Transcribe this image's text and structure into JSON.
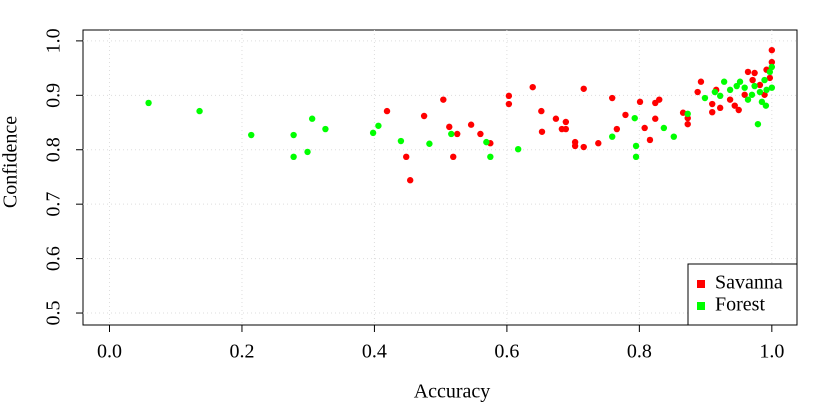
{
  "chart_data": {
    "type": "scatter",
    "x_label": "Accuracy",
    "y_label": "Confidence",
    "xlim": [
      -0.04,
      1.038
    ],
    "ylim": [
      0.478,
      1.02
    ],
    "xticks": [
      {
        "value": 0,
        "label": "0.0"
      },
      0.2,
      0.4,
      0.6,
      0.8,
      {
        "value": 1,
        "label": "1.0"
      }
    ],
    "yticks": [
      0.5,
      0.6,
      0.7,
      0.8,
      0.9,
      {
        "value": 1,
        "label": "1.0"
      }
    ],
    "grid": true,
    "legend": "bottom-right",
    "series": [
      {
        "name": "Savanna",
        "color": "#ff0000",
        "x": [
          0.419,
          0.454,
          0.448,
          0.475,
          0.504,
          0.513,
          0.519,
          0.525,
          0.546,
          0.56,
          0.575,
          0.603,
          0.603,
          0.639,
          0.652,
          0.653,
          0.674,
          0.683,
          0.689,
          0.689,
          0.703,
          0.703,
          0.716,
          0.716,
          0.738,
          0.759,
          0.766,
          0.779,
          0.801,
          0.808,
          0.816,
          0.824,
          0.83,
          0.824,
          0.866,
          0.873,
          0.888,
          0.893,
          0.91,
          0.916,
          0.922,
          0.937,
          0.944,
          0.964,
          0.971,
          0.982,
          0.992,
          1.0,
          1.0,
          0.989,
          0.959,
          0.91,
          0.95,
          0.873,
          0.974,
          0.997
        ],
        "values": [
          0.871,
          0.744,
          0.787,
          0.862,
          0.892,
          0.842,
          0.787,
          0.829,
          0.846,
          0.829,
          0.812,
          0.899,
          0.884,
          0.915,
          0.871,
          0.833,
          0.857,
          0.838,
          0.851,
          0.838,
          0.814,
          0.807,
          0.912,
          0.805,
          0.812,
          0.895,
          0.838,
          0.864,
          0.888,
          0.84,
          0.818,
          0.886,
          0.892,
          0.857,
          0.868,
          0.847,
          0.906,
          0.925,
          0.884,
          0.91,
          0.877,
          0.892,
          0.881,
          0.943,
          0.928,
          0.919,
          0.947,
          0.983,
          0.961,
          0.901,
          0.901,
          0.869,
          0.873,
          0.858,
          0.941,
          0.932
        ]
      },
      {
        "name": "Forest",
        "color": "#00ff00",
        "x": [
          0.059,
          0.136,
          0.214,
          0.278,
          0.278,
          0.299,
          0.306,
          0.326,
          0.398,
          0.406,
          0.44,
          0.483,
          0.516,
          0.569,
          0.575,
          0.617,
          0.759,
          0.795,
          0.795,
          0.793,
          0.837,
          0.852,
          0.873,
          0.899,
          0.914,
          0.928,
          0.937,
          0.952,
          0.959,
          0.97,
          0.974,
          0.979,
          0.985,
          0.989,
          0.992,
          0.997,
          1.0,
          1.0,
          0.991,
          0.982,
          0.964,
          0.922,
          0.947
        ],
        "values": [
          0.886,
          0.871,
          0.827,
          0.827,
          0.787,
          0.796,
          0.857,
          0.838,
          0.831,
          0.844,
          0.816,
          0.811,
          0.829,
          0.814,
          0.787,
          0.801,
          0.824,
          0.807,
          0.787,
          0.858,
          0.84,
          0.824,
          0.866,
          0.895,
          0.906,
          0.925,
          0.91,
          0.925,
          0.914,
          0.901,
          0.917,
          0.847,
          0.888,
          0.928,
          0.91,
          0.943,
          0.952,
          0.914,
          0.881,
          0.906,
          0.892,
          0.899,
          0.917
        ]
      }
    ]
  }
}
